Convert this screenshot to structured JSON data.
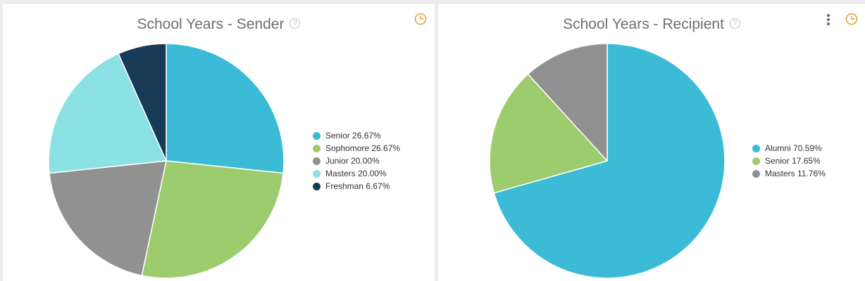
{
  "chart_data": [
    {
      "type": "pie",
      "title": "School Years - Sender",
      "slices": [
        {
          "label": "Senior",
          "value": 26.67,
          "display": "Senior 26.67%",
          "color": "#3bbbd6"
        },
        {
          "label": "Sophomore",
          "value": 26.67,
          "display": "Sophomore 26.67%",
          "color": "#9dcc6e"
        },
        {
          "label": "Junior",
          "value": 20.0,
          "display": "Junior 20.00%",
          "color": "#919191"
        },
        {
          "label": "Masters",
          "value": 20.0,
          "display": "Masters 20.00%",
          "color": "#8be1e3"
        },
        {
          "label": "Freshman",
          "value": 6.67,
          "display": "Freshman 6.67%",
          "color": "#173a57"
        }
      ],
      "legend_position": "right",
      "help_glyph": "?"
    },
    {
      "type": "pie",
      "title": "School Years - Recipient",
      "slices": [
        {
          "label": "Alumni",
          "value": 70.59,
          "display": "Alumni 70.59%",
          "color": "#3bbbd6"
        },
        {
          "label": "Senior",
          "value": 17.65,
          "display": "Senior 17.65%",
          "color": "#9dcc6e"
        },
        {
          "label": "Masters",
          "value": 11.76,
          "display": "Masters 11.76%",
          "color": "#919191"
        }
      ],
      "legend_position": "right",
      "help_glyph": "?"
    }
  ],
  "icons": {
    "history": "clock-icon",
    "menu": "kebab-menu-icon",
    "help": "help-icon"
  },
  "accent_color": "#e0a33a"
}
